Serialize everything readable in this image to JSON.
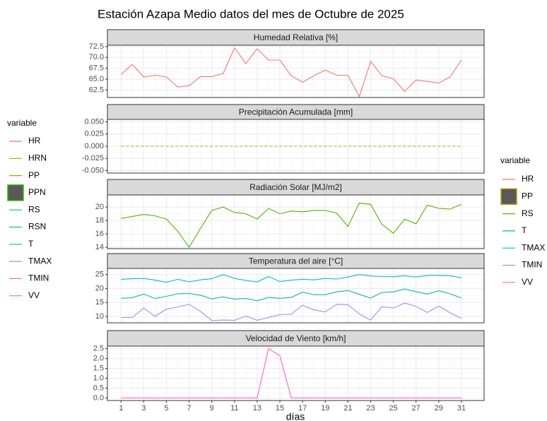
{
  "title": "Estación Azapa Medio datos del mes de Octubre de 2025",
  "x_label": "días",
  "legends": [
    {
      "title": "variable",
      "items": [
        {
          "name": "HR",
          "color": "#F8766D"
        },
        {
          "name": "HRN",
          "color": "#D89000"
        },
        {
          "name": "PP",
          "color": "#A3A500"
        },
        {
          "name": "PPN",
          "color": "#39B600",
          "fill": "#595959"
        },
        {
          "name": "RS",
          "color": "#00BF7D"
        },
        {
          "name": "RSN",
          "color": "#00BFC4"
        },
        {
          "name": "T",
          "color": "#00B0F6"
        },
        {
          "name": "TMAX",
          "color": "#9590FF"
        },
        {
          "name": "TMIN",
          "color": "#E76BF3"
        },
        {
          "name": "VV",
          "color": "#FF62BC"
        }
      ]
    },
    {
      "title": "variable",
      "items": [
        {
          "name": "HR",
          "color": "#F8766D"
        },
        {
          "name": "PP",
          "color": "#C49A00",
          "fill": "#595959"
        },
        {
          "name": "RS",
          "color": "#53B400"
        },
        {
          "name": "T",
          "color": "#00C094"
        },
        {
          "name": "TMAX",
          "color": "#00B6EB"
        },
        {
          "name": "TMIN",
          "color": "#A58AFF"
        },
        {
          "name": "VV",
          "color": "#FB61D7"
        }
      ]
    }
  ],
  "chart_data": [
    {
      "type": "line",
      "title": "Humedad Relativa [%]",
      "grid": true,
      "x": [
        1,
        2,
        3,
        4,
        5,
        6,
        7,
        8,
        9,
        10,
        11,
        12,
        13,
        14,
        15,
        16,
        17,
        18,
        19,
        20,
        21,
        22,
        23,
        24,
        25,
        26,
        27,
        28,
        29,
        30,
        31
      ],
      "xlim": [
        -0.2,
        33
      ],
      "ylim": [
        60.8,
        72.8
      ],
      "yticks": [
        62.5,
        {
          "value": 65,
          "label": "65.0"
        },
        67.5,
        {
          "value": 70,
          "label": "70.0"
        },
        72.5
      ],
      "series": [
        {
          "color": "#F8766D",
          "values": [
            66.1,
            68.4,
            65.5,
            65.9,
            65.5,
            63.2,
            63.5,
            65.6,
            65.6,
            66.3,
            72.2,
            68.6,
            72.0,
            69.4,
            69.4,
            65.8,
            64.3,
            65.8,
            67.1,
            65.9,
            65.9,
            61.0,
            69.1,
            65.8,
            65.1,
            62.2,
            64.8,
            64.5,
            64.1,
            65.5,
            69.4
          ]
        }
      ]
    },
    {
      "type": "line",
      "title": "Precipitación Acumulada [mm]",
      "grid": true,
      "x": [
        1,
        2,
        3,
        4,
        5,
        6,
        7,
        8,
        9,
        10,
        11,
        12,
        13,
        14,
        15,
        16,
        17,
        18,
        19,
        20,
        21,
        22,
        23,
        24,
        25,
        26,
        27,
        28,
        29,
        30,
        31
      ],
      "xlim": [
        -0.2,
        33
      ],
      "ylim": [
        -0.055,
        0.055
      ],
      "yticks": [
        {
          "value": -0.05,
          "label": "-0.050"
        },
        {
          "value": -0.025,
          "label": "-0.025"
        },
        {
          "value": 0,
          "label": "0.000"
        },
        {
          "value": 0.025,
          "label": "0.025"
        },
        {
          "value": 0.05,
          "label": "0.050"
        }
      ],
      "series": [
        {
          "color": "#C49A00",
          "dashed": true,
          "values": [
            0,
            0,
            0,
            0,
            0,
            0,
            0,
            0,
            0,
            0,
            0,
            0,
            0,
            0,
            0,
            0,
            0,
            0,
            0,
            0,
            0,
            0,
            0,
            0,
            0,
            0,
            0,
            0,
            0,
            0,
            0
          ]
        }
      ]
    },
    {
      "type": "line",
      "title": "Radiación Solar [MJ/m2]",
      "grid": true,
      "x": [
        1,
        2,
        3,
        4,
        5,
        6,
        7,
        8,
        9,
        10,
        11,
        12,
        13,
        14,
        15,
        16,
        17,
        18,
        19,
        20,
        21,
        22,
        23,
        24,
        25,
        26,
        27,
        28,
        29,
        30,
        31
      ],
      "xlim": [
        -0.2,
        33
      ],
      "ylim": [
        13.8,
        21.8
      ],
      "yticks": [
        14,
        16,
        18,
        20
      ],
      "series": [
        {
          "color": "#53B400",
          "values": [
            18.3,
            18.6,
            18.9,
            18.7,
            18.2,
            16.4,
            14.0,
            16.8,
            19.5,
            20.0,
            19.2,
            19.0,
            18.2,
            19.8,
            19.0,
            19.4,
            19.3,
            19.5,
            19.5,
            19.1,
            17.1,
            20.6,
            20.4,
            17.4,
            16.1,
            18.2,
            17.5,
            20.3,
            19.8,
            19.7,
            20.4
          ]
        }
      ]
    },
    {
      "type": "line",
      "title": "Temperatura del aire [°C]",
      "grid": true,
      "x": [
        1,
        2,
        3,
        4,
        5,
        6,
        7,
        8,
        9,
        10,
        11,
        12,
        13,
        14,
        15,
        16,
        17,
        18,
        19,
        20,
        21,
        22,
        23,
        24,
        25,
        26,
        27,
        28,
        29,
        30,
        31
      ],
      "xlim": [
        -0.2,
        33
      ],
      "ylim": [
        7.7,
        27.2
      ],
      "yticks": [
        10,
        15,
        20,
        25
      ],
      "series": [
        {
          "color": "#00C094",
          "values": [
            16.5,
            16.7,
            18.0,
            16.4,
            17.2,
            18.1,
            18.2,
            17.6,
            16.3,
            17.0,
            16.2,
            16.4,
            15.6,
            16.8,
            16.5,
            16.8,
            18.7,
            17.8,
            17.8,
            18.8,
            19.3,
            17.9,
            16.6,
            18.6,
            18.8,
            19.8,
            18.9,
            18.0,
            19.2,
            18.1,
            16.6
          ]
        },
        {
          "color": "#00B6EB",
          "values": [
            23.3,
            23.5,
            23.6,
            23.0,
            22.2,
            23.3,
            22.4,
            23.1,
            23.5,
            25.0,
            23.6,
            22.9,
            22.4,
            24.3,
            22.5,
            23.0,
            23.3,
            23.1,
            23.6,
            23.4,
            24.1,
            25.0,
            24.5,
            24.3,
            24.2,
            24.6,
            24.1,
            24.7,
            24.7,
            24.6,
            23.8
          ]
        },
        {
          "color": "#A58AFF",
          "values": [
            9.6,
            9.6,
            13.0,
            10.0,
            12.6,
            13.4,
            14.3,
            11.8,
            8.5,
            8.7,
            8.6,
            10.1,
            8.6,
            9.6,
            10.6,
            10.8,
            14.0,
            12.3,
            11.6,
            14.3,
            14.2,
            10.9,
            8.7,
            13.5,
            13.0,
            14.8,
            13.6,
            11.4,
            13.7,
            11.3,
            9.3
          ]
        }
      ]
    },
    {
      "type": "line",
      "title": "Velocidad de Viento [km/h]",
      "grid": true,
      "x": [
        1,
        2,
        3,
        4,
        5,
        6,
        7,
        8,
        9,
        10,
        11,
        12,
        13,
        14,
        15,
        16,
        17,
        18,
        19,
        20,
        21,
        22,
        23,
        24,
        25,
        26,
        27,
        28,
        29,
        30,
        31
      ],
      "xlim": [
        -0.2,
        33
      ],
      "ylim": [
        -0.13,
        2.63
      ],
      "xticks": [
        1,
        3,
        5,
        7,
        9,
        11,
        13,
        15,
        17,
        19,
        21,
        23,
        25,
        27,
        29,
        31
      ],
      "yticks": [
        {
          "value": 0,
          "label": "0.0"
        },
        0.5,
        {
          "value": 1,
          "label": "1.0"
        },
        1.5,
        {
          "value": 2,
          "label": "2.0"
        },
        2.5
      ],
      "series": [
        {
          "color": "#FB61D7",
          "values": [
            0,
            0,
            0,
            0,
            0,
            0,
            0,
            0,
            0,
            0,
            0,
            0,
            0,
            2.5,
            2.15,
            0,
            0,
            0,
            0,
            0,
            0,
            0,
            0,
            0,
            0,
            0,
            0,
            0,
            0,
            0,
            0
          ]
        }
      ]
    }
  ]
}
